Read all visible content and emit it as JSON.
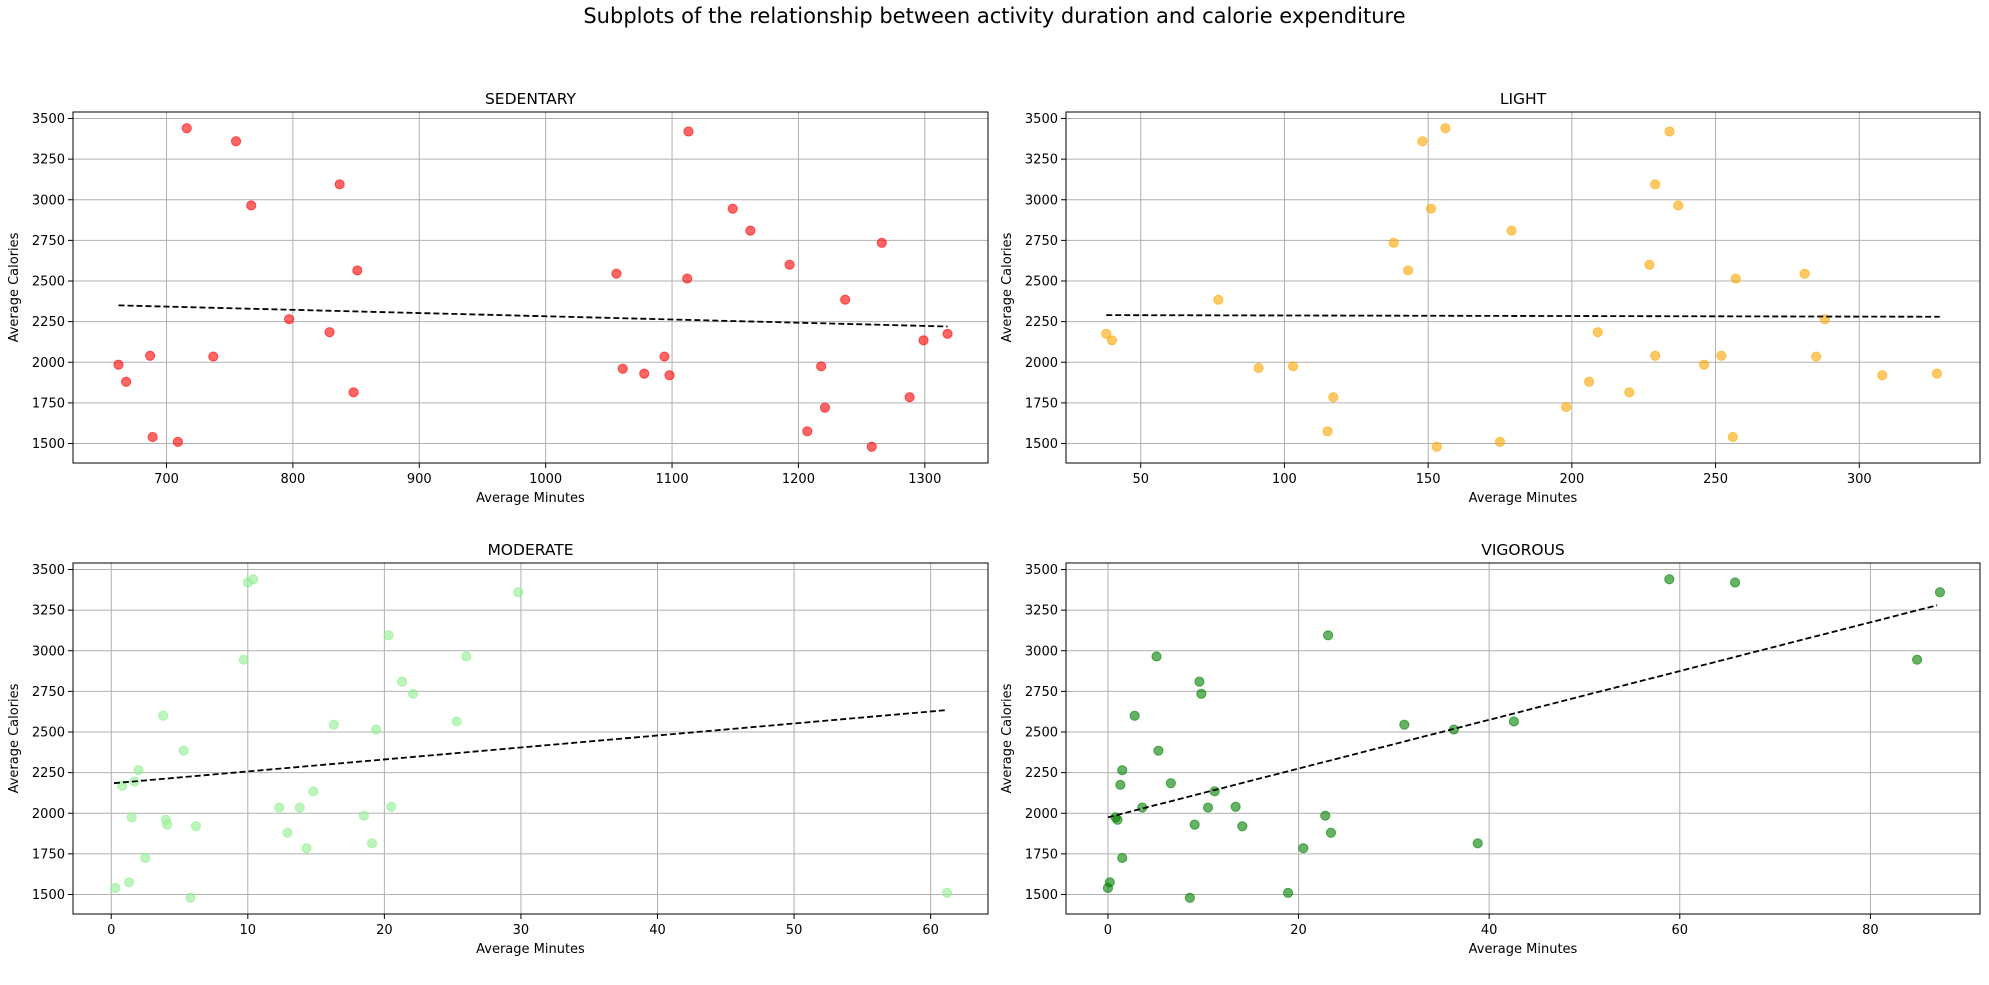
{
  "suptitle": "Subplots of the relationship between activity duration and calorie expenditure",
  "chart_data": [
    {
      "type": "scatter",
      "title": "SEDENTARY",
      "xlabel": "Average Minutes",
      "ylabel": "Average Calories",
      "xlim": [
        626,
        1350
      ],
      "ylim": [
        1380,
        3540
      ],
      "xticks": [
        700,
        800,
        900,
        1000,
        1100,
        1200,
        1300
      ],
      "yticks": [
        1500,
        1750,
        2000,
        2250,
        2500,
        2750,
        3000,
        3250,
        3500
      ],
      "grid": true,
      "color": "#ff0000",
      "trendline": {
        "x": [
          662,
          1318
        ],
        "y": [
          2350,
          2220
        ],
        "style": "dashed",
        "color": "#000000"
      },
      "x": [
        716,
        755,
        767,
        837,
        851,
        797,
        829,
        848,
        687,
        662,
        668,
        737,
        689,
        709,
        1113,
        1148,
        1162,
        1112,
        1056,
        1193,
        1266,
        1237,
        1061,
        1078,
        1094,
        1098,
        1218,
        1221,
        1207,
        1258,
        1288,
        1299,
        1318
      ],
      "y": [
        3440,
        3360,
        2965,
        3095,
        2565,
        2265,
        2185,
        1815,
        2040,
        1985,
        1880,
        2035,
        1540,
        1510,
        3420,
        2945,
        2810,
        2515,
        2545,
        2600,
        2735,
        2385,
        1960,
        1930,
        2035,
        1920,
        1975,
        1720,
        1575,
        1480,
        1785,
        2135,
        2175
      ]
    },
    {
      "type": "scatter",
      "title": "LIGHT",
      "xlabel": "Average Minutes",
      "ylabel": "Average Calories",
      "xlim": [
        24,
        342
      ],
      "ylim": [
        1380,
        3540
      ],
      "xticks": [
        50,
        100,
        150,
        200,
        250,
        300
      ],
      "yticks": [
        1500,
        1750,
        2000,
        2250,
        2500,
        2750,
        3000,
        3250,
        3500
      ],
      "grid": true,
      "color": "#ffa500",
      "trendline": {
        "x": [
          38,
          328
        ],
        "y": [
          2290,
          2280
        ],
        "style": "dashed",
        "color": "#000000"
      },
      "x": [
        38,
        40,
        77,
        91,
        103,
        115,
        117,
        138,
        143,
        148,
        151,
        156,
        153,
        175,
        179,
        198,
        206,
        209,
        220,
        227,
        229,
        229,
        234,
        237,
        246,
        252,
        256,
        257,
        281,
        285,
        288,
        308,
        327
      ],
      "y": [
        2175,
        2135,
        2385,
        1965,
        1975,
        1575,
        1785,
        2735,
        2565,
        3360,
        2945,
        3440,
        1480,
        1510,
        2810,
        1725,
        1880,
        2185,
        1815,
        2600,
        3095,
        2040,
        3420,
        2965,
        1985,
        2040,
        1540,
        2515,
        2545,
        2035,
        2265,
        1920,
        1930
      ]
    },
    {
      "type": "scatter",
      "title": "MODERATE",
      "xlabel": "Average Minutes",
      "ylabel": "Average Calories",
      "xlim": [
        -2.8,
        64.2
      ],
      "ylim": [
        1380,
        3540
      ],
      "xticks": [
        0,
        10,
        20,
        30,
        40,
        50,
        60
      ],
      "yticks": [
        1500,
        1750,
        2000,
        2250,
        2500,
        2750,
        3000,
        3250,
        3500
      ],
      "grid": true,
      "color": "#90ee90",
      "trendline": {
        "x": [
          0.2,
          61.2
        ],
        "y": [
          2185,
          2635
        ],
        "style": "dashed",
        "color": "#000000"
      },
      "x": [
        0.3,
        0.8,
        1.3,
        1.5,
        1.7,
        2.0,
        2.5,
        3.8,
        4.0,
        4.1,
        5.3,
        5.8,
        6.2,
        9.7,
        10.0,
        10.4,
        12.3,
        12.9,
        13.8,
        14.3,
        14.8,
        16.3,
        18.5,
        19.1,
        19.4,
        20.3,
        20.5,
        21.3,
        22.1,
        25.3,
        26.0,
        29.8,
        61.2
      ],
      "y": [
        1540,
        2170,
        1575,
        1975,
        2195,
        2265,
        1725,
        2600,
        1960,
        1930,
        2385,
        1480,
        1920,
        2945,
        3420,
        3440,
        2035,
        1880,
        2035,
        1785,
        2135,
        2545,
        1985,
        1815,
        2515,
        3095,
        2040,
        2810,
        2735,
        2565,
        2965,
        3360,
        1510
      ]
    },
    {
      "type": "scatter",
      "title": "VIGOROUS",
      "xlabel": "Average Minutes",
      "ylabel": "Average Calories",
      "xlim": [
        -4.4,
        91.5
      ],
      "ylim": [
        1380,
        3540
      ],
      "xticks": [
        0,
        20,
        40,
        60,
        80
      ],
      "yticks": [
        1500,
        1750,
        2000,
        2250,
        2500,
        2750,
        3000,
        3250,
        3500
      ],
      "grid": true,
      "color": "#008000",
      "trendline": {
        "x": [
          0,
          87
        ],
        "y": [
          1975,
          3280
        ],
        "style": "dashed",
        "color": "#000000"
      },
      "x": [
        0,
        0.2,
        0.8,
        1.0,
        1.3,
        1.5,
        1.5,
        2.8,
        3.6,
        5.1,
        5.3,
        6.6,
        8.6,
        9.1,
        9.6,
        9.8,
        10.5,
        11.2,
        13.4,
        14.1,
        18.9,
        20.5,
        22.8,
        23.1,
        23.4,
        31.1,
        36.3,
        38.8,
        42.6,
        58.9,
        65.8,
        84.9,
        87.3
      ],
      "y": [
        1540,
        1575,
        1975,
        1960,
        2175,
        1725,
        2265,
        2600,
        2035,
        2965,
        2385,
        2185,
        1480,
        1930,
        2810,
        2735,
        2035,
        2135,
        2040,
        1920,
        1510,
        1785,
        1985,
        3095,
        1880,
        2545,
        2515,
        1815,
        2565,
        3440,
        3420,
        2945,
        3360
      ]
    }
  ]
}
